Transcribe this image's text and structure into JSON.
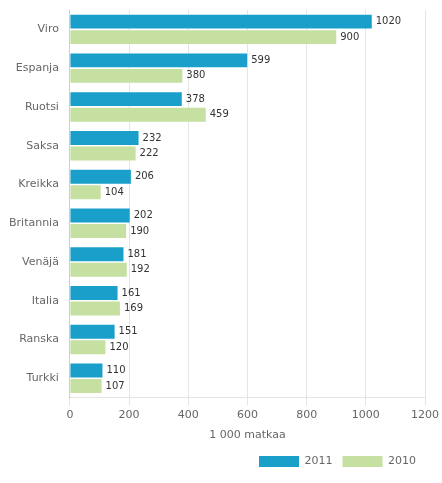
{
  "chart_data": {
    "type": "bar",
    "orientation": "horizontal",
    "categories": [
      "Viro",
      "Espanja",
      "Ruotsi",
      "Saksa",
      "Kreikka",
      "Britannia",
      "Venäjä",
      "Italia",
      "Ranska",
      "Turkki"
    ],
    "series": [
      {
        "name": "2011",
        "color": "#1a9fca",
        "values": [
          1020,
          599,
          378,
          232,
          206,
          202,
          181,
          161,
          151,
          110
        ]
      },
      {
        "name": "2010",
        "color": "#c5e0a0",
        "values": [
          900,
          380,
          459,
          222,
          104,
          190,
          192,
          169,
          120,
          107
        ]
      }
    ],
    "xlabel": "1 000 matkaa",
    "xlim": [
      0,
      1200
    ],
    "xticks": [
      0,
      200,
      400,
      600,
      800,
      1000,
      1200
    ],
    "grid": true,
    "legend": "lower right",
    "data_labels": true
  }
}
